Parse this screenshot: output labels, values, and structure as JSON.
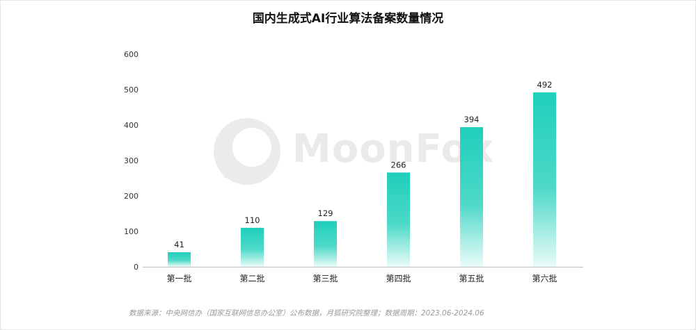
{
  "page": {
    "title": "国内生成式AI行业算法备案数量情况",
    "source": "数据来源：中央网信办（国家互联网信息办公室）公布数据，月狐研究院整理；数据周期：2023.06-2024.06",
    "watermark": "MoonFox"
  },
  "chart_data": {
    "type": "bar",
    "title": "国内生成式AI行业算法备案数量情况",
    "categories": [
      "第一批",
      "第二批",
      "第三批",
      "第四批",
      "第五批",
      "第六批"
    ],
    "values": [
      41,
      110,
      129,
      266,
      394,
      492
    ],
    "data_labels": [
      "41",
      "110",
      "129",
      "266",
      "394",
      "492"
    ],
    "yticks": [
      "0",
      "100",
      "200",
      "300",
      "400",
      "500",
      "600"
    ],
    "ylim": [
      0,
      600
    ],
    "grid": false,
    "legend": "none",
    "bar_color_top": "#1ecfbb",
    "bar_color_bottom": "#eafbf8"
  }
}
